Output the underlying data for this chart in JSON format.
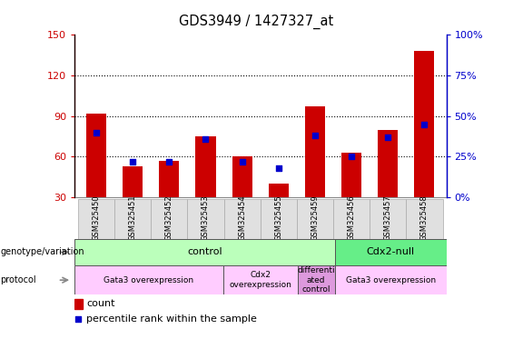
{
  "title": "GDS3949 / 1427327_at",
  "samples": [
    "GSM325450",
    "GSM325451",
    "GSM325452",
    "GSM325453",
    "GSM325454",
    "GSM325455",
    "GSM325459",
    "GSM325456",
    "GSM325457",
    "GSM325458"
  ],
  "counts": [
    92,
    53,
    57,
    75,
    60,
    40,
    97,
    63,
    80,
    138
  ],
  "percentile_ranks": [
    40,
    22,
    22,
    36,
    22,
    18,
    38,
    25,
    37,
    45
  ],
  "ylim_left": [
    30,
    150
  ],
  "ylim_right": [
    0,
    100
  ],
  "yticks_left": [
    30,
    60,
    90,
    120,
    150
  ],
  "yticks_right": [
    0,
    25,
    50,
    75,
    100
  ],
  "bar_color": "#cc0000",
  "dot_color": "#0000cc",
  "bar_width": 0.55,
  "genotype_groups": [
    {
      "label": "control",
      "start": 0,
      "end": 7,
      "color": "#bbffbb"
    },
    {
      "label": "Cdx2-null",
      "start": 7,
      "end": 10,
      "color": "#66ee88"
    }
  ],
  "protocol_groups": [
    {
      "label": "Gata3 overexpression",
      "start": 0,
      "end": 4,
      "color": "#ffccff"
    },
    {
      "label": "Cdx2\noverexpression",
      "start": 4,
      "end": 6,
      "color": "#ffccff"
    },
    {
      "label": "differenti\nated\ncontrol",
      "start": 6,
      "end": 7,
      "color": "#dd99dd"
    },
    {
      "label": "Gata3 overexpression",
      "start": 7,
      "end": 10,
      "color": "#ffccff"
    }
  ],
  "legend_count_color": "#cc0000",
  "legend_pct_color": "#0000cc",
  "left_tick_color": "#cc0000",
  "right_tick_color": "#0000cc"
}
